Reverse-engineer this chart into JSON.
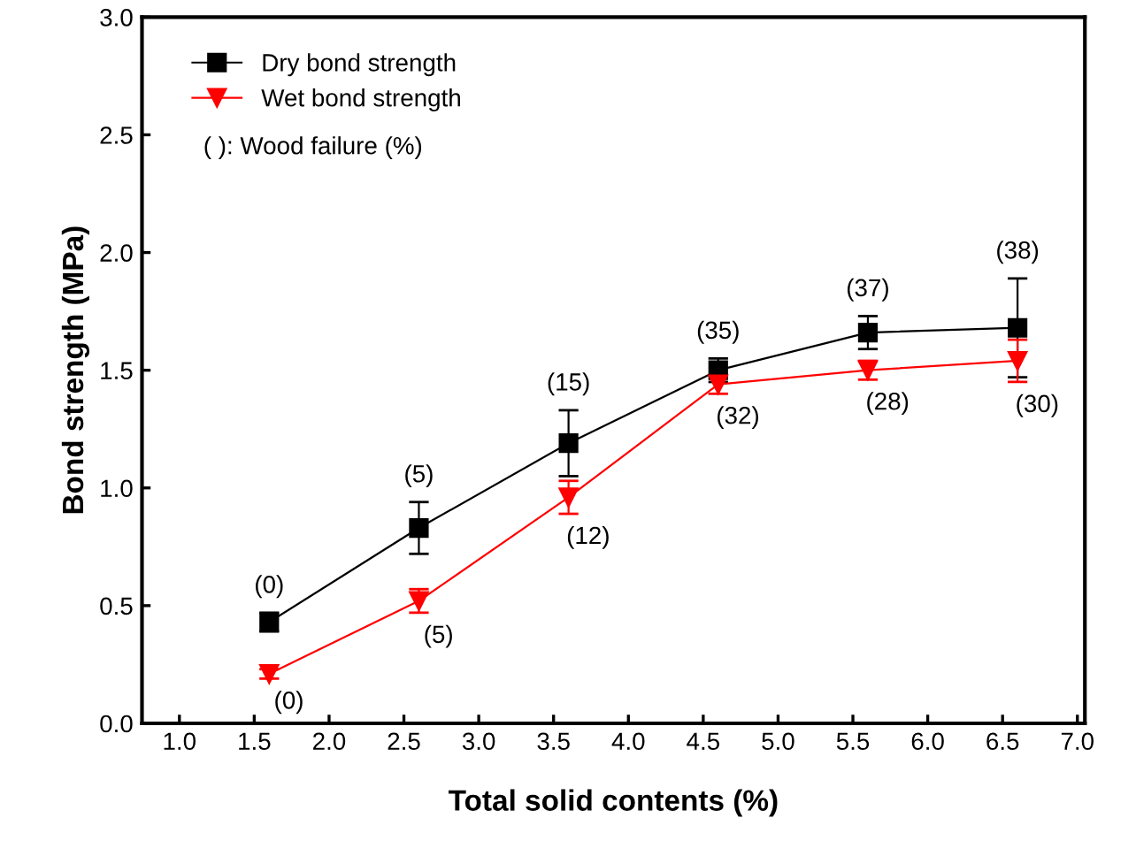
{
  "chart_data": {
    "type": "line",
    "xlabel": "Total solid contents (%)",
    "ylabel": "Bond strength (MPa)",
    "x": [
      1.6,
      2.6,
      3.6,
      4.6,
      5.6,
      6.6
    ],
    "series": [
      {
        "name": "Dry bond strength",
        "color": "#000000",
        "marker": "square",
        "values": [
          0.43,
          0.83,
          1.19,
          1.5,
          1.66,
          1.68
        ],
        "errors": [
          0.04,
          0.11,
          0.14,
          0.05,
          0.07,
          0.21
        ]
      },
      {
        "name": "Wet bond strength",
        "color": "#ff0000",
        "marker": "triangle",
        "values": [
          0.21,
          0.52,
          0.96,
          1.44,
          1.5,
          1.54
        ],
        "errors": [
          0.02,
          0.05,
          0.07,
          0.04,
          0.04,
          0.09
        ]
      }
    ],
    "annotations": [
      "( ): Wood failure (%)",
      {
        "text": "(0)",
        "x": 1.6,
        "y": 0.43
      },
      {
        "text": "(5)",
        "x": 2.6,
        "y": 0.83
      },
      {
        "text": "(15)",
        "x": 3.6,
        "y": 1.19
      },
      {
        "text": "(35)",
        "x": 4.6,
        "y": 1.5
      },
      {
        "text": "(37)",
        "x": 5.6,
        "y": 1.66
      },
      {
        "text": "(38)",
        "x": 6.6,
        "y": 1.68
      },
      {
        "text": "(0)",
        "x": 1.6,
        "y": 0.21
      },
      {
        "text": "(5)",
        "x": 2.6,
        "y": 0.52
      },
      {
        "text": "(12)",
        "x": 3.6,
        "y": 0.96
      },
      {
        "text": "(32)",
        "x": 4.6,
        "y": 1.44
      },
      {
        "text": "(28)",
        "x": 5.6,
        "y": 1.5
      },
      {
        "text": "(30)",
        "x": 6.6,
        "y": 1.54
      }
    ],
    "xlim": [
      0.75,
      7.05
    ],
    "ylim": [
      0,
      3.0
    ],
    "xticks": [
      {
        "value": 1.0,
        "label": "1.0"
      },
      1.5,
      {
        "value": 2.0,
        "label": "2.0"
      },
      2.5,
      {
        "value": 3.0,
        "label": "3.0"
      },
      3.5,
      {
        "value": 4.0,
        "label": "4.0"
      },
      4.5,
      {
        "value": 5.0,
        "label": "5.0"
      },
      5.5,
      {
        "value": 6.0,
        "label": "6.0"
      },
      6.5,
      {
        "value": 7.0,
        "label": "7.0"
      }
    ],
    "yticks": [
      {
        "value": 0.0,
        "label": "0.0"
      },
      0.5,
      {
        "value": 1.0,
        "label": "1.0"
      },
      1.5,
      {
        "value": 2.0,
        "label": "2.0"
      },
      2.5,
      {
        "value": 3.0,
        "label": "3.0"
      }
    ],
    "legend": "top left",
    "grid": false
  }
}
